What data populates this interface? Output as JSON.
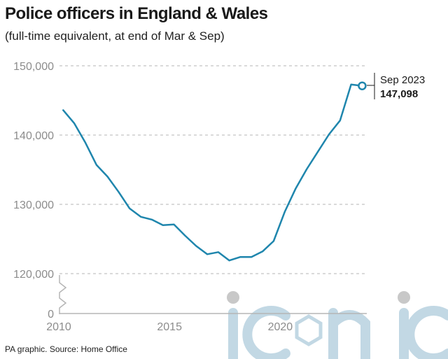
{
  "title": "Police officers in England & Wales",
  "subtitle": "(full-time equivalent, at end of Mar & Sep)",
  "source": "PA graphic. Source: Home Office",
  "watermark": "iconic",
  "colors": {
    "line": "#1f86ad",
    "grid": "#b5b5b5",
    "tick": "#8c8c8c",
    "watermark": "#c2d8e4"
  },
  "chart_data": {
    "type": "line",
    "title": "Police officers in England & Wales",
    "subtitle": "(full-time equivalent, at end of Mar & Sep)",
    "y_break": true,
    "y_ticks": [
      {
        "value": 0,
        "label": "0"
      },
      {
        "value": 120000,
        "label": "120,000"
      },
      {
        "value": 130000,
        "label": "130,000"
      },
      {
        "value": 140000,
        "label": "140,000"
      },
      {
        "value": 150000,
        "label": "150,000"
      }
    ],
    "x_ticks": [
      {
        "value": 2010,
        "label": "2010"
      },
      {
        "value": 2015,
        "label": "2015"
      },
      {
        "value": 2020,
        "label": "2020"
      }
    ],
    "xlim": [
      2010,
      2023.75
    ],
    "ylim_upper": [
      120000,
      150000
    ],
    "grid": "horizontal dashed",
    "x": [
      2010.2,
      2010.7,
      2011.2,
      2011.7,
      2012.2,
      2012.7,
      2013.2,
      2013.7,
      2014.2,
      2014.7,
      2015.2,
      2015.7,
      2016.2,
      2016.7,
      2017.2,
      2017.7,
      2018.2,
      2018.7,
      2019.2,
      2019.7,
      2020.2,
      2020.7,
      2021.2,
      2021.7,
      2022.2,
      2022.7,
      2023.2,
      2023.7
    ],
    "values": [
      143600,
      141700,
      138900,
      135700,
      134000,
      131800,
      129400,
      128200,
      127800,
      127000,
      127100,
      125500,
      124000,
      122800,
      123100,
      121900,
      122400,
      122400,
      123200,
      124700,
      128900,
      132300,
      135100,
      137600,
      140100,
      142100,
      147300,
      147098
    ],
    "annotation": {
      "label": "Sep 2023",
      "value": "147,098"
    }
  }
}
